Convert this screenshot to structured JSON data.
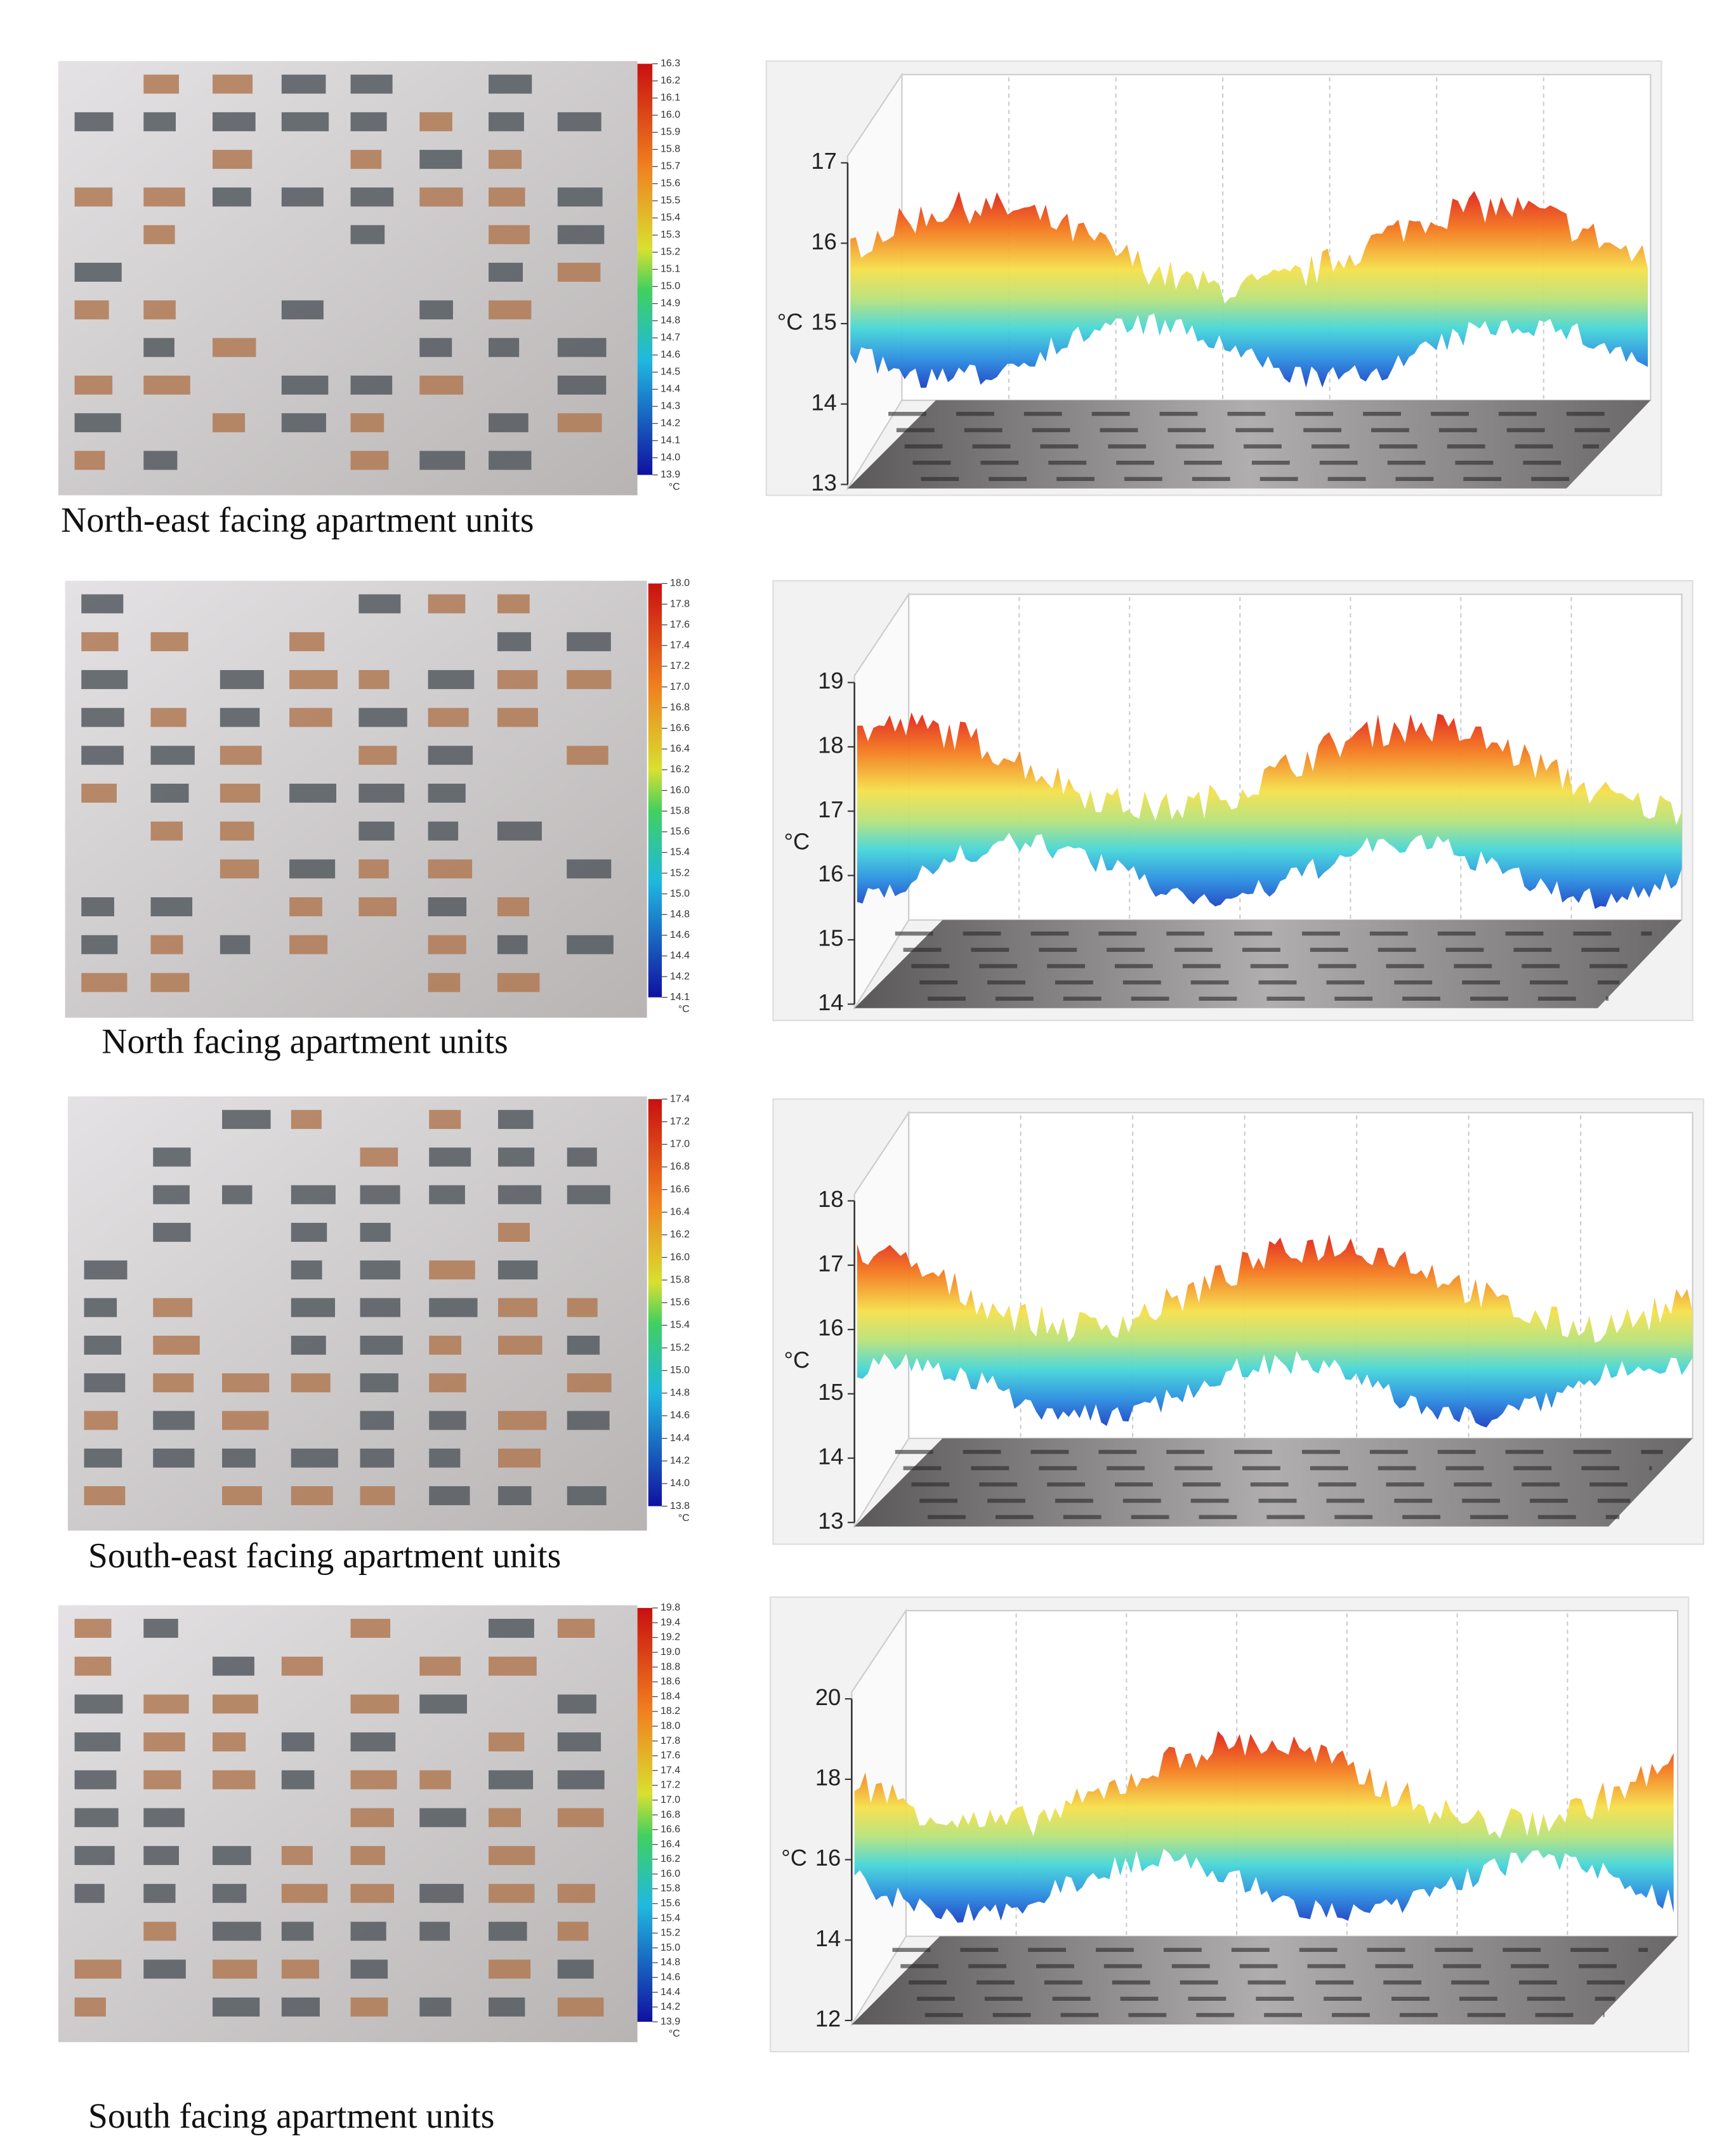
{
  "panels": [
    {
      "caption": "North-east facing apartment units",
      "colorbar": {
        "ticks": [
          "16.3",
          "16.2",
          "16.1",
          "16.0",
          "15.9",
          "15.8",
          "15.7",
          "15.6",
          "15.5",
          "15.4",
          "15.3",
          "15.2",
          "15.1",
          "15.0",
          "14.9",
          "14.8",
          "14.7",
          "14.6",
          "14.5",
          "14.4",
          "14.3",
          "14.2",
          "14.1",
          "14.0",
          "13.9"
        ],
        "unit": "°C"
      },
      "plot": {
        "yticks": [
          "17",
          "16",
          "15",
          "14",
          "13"
        ],
        "unit": "°C"
      }
    },
    {
      "caption": "North facing apartment units",
      "colorbar": {
        "ticks": [
          "18.0",
          "17.8",
          "17.6",
          "17.4",
          "17.2",
          "17.0",
          "16.8",
          "16.6",
          "16.4",
          "16.2",
          "16.0",
          "15.8",
          "15.6",
          "15.4",
          "15.2",
          "15.0",
          "14.8",
          "14.6",
          "14.4",
          "14.2",
          "14.1"
        ],
        "unit": "°C"
      },
      "plot": {
        "yticks": [
          "19",
          "18",
          "17",
          "16",
          "15",
          "14"
        ],
        "unit": "°C"
      }
    },
    {
      "caption": "South-east facing apartment units",
      "colorbar": {
        "ticks": [
          "17.4",
          "17.2",
          "17.0",
          "16.8",
          "16.6",
          "16.4",
          "16.2",
          "16.0",
          "15.8",
          "15.6",
          "15.4",
          "15.2",
          "15.0",
          "14.8",
          "14.6",
          "14.4",
          "14.2",
          "14.0",
          "13.8"
        ],
        "unit": "°C"
      },
      "plot": {
        "yticks": [
          "18",
          "17",
          "16",
          "15",
          "14",
          "13"
        ],
        "unit": "°C"
      }
    },
    {
      "caption": "South facing apartment units",
      "colorbar": {
        "ticks": [
          "19.8",
          "19.4",
          "19.2",
          "19.0",
          "18.8",
          "18.6",
          "18.4",
          "18.2",
          "18.0",
          "17.8",
          "17.6",
          "17.4",
          "17.2",
          "17.0",
          "16.8",
          "16.6",
          "16.4",
          "16.2",
          "16.0",
          "15.8",
          "15.6",
          "15.4",
          "15.2",
          "15.0",
          "14.8",
          "14.6",
          "14.4",
          "14.2",
          "13.9"
        ],
        "unit": "°C"
      },
      "plot": {
        "yticks": [
          "20",
          "18",
          "16",
          "14",
          "12"
        ],
        "unit": "°C"
      }
    }
  ]
}
